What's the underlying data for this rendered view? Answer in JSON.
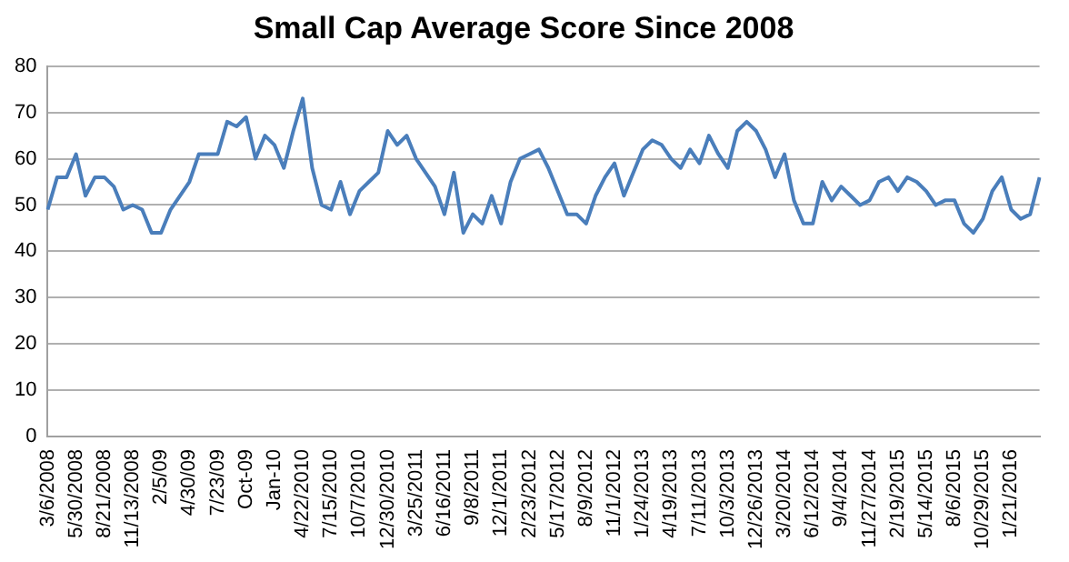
{
  "chart_data": {
    "type": "line",
    "title": "Small Cap Average Score Since 2008",
    "categories": [
      "3/6/2008",
      null,
      null,
      "5/30/2008",
      null,
      null,
      "8/21/2008",
      null,
      null,
      "11/13/2008",
      null,
      null,
      "2/5/09",
      null,
      null,
      "4/30/09",
      null,
      null,
      "7/23/09",
      null,
      null,
      "Oct-09",
      null,
      null,
      "Jan-10",
      null,
      null,
      "4/22/2010",
      null,
      null,
      "7/15/2010",
      null,
      null,
      "10/7/2010",
      null,
      null,
      "12/30/2010",
      null,
      null,
      "3/25/2011",
      null,
      null,
      "6/16/2011",
      null,
      null,
      "9/8/2011",
      null,
      null,
      "12/1/2011",
      null,
      null,
      "2/23/2012",
      null,
      null,
      "5/17/2012",
      null,
      null,
      "8/9/2012",
      null,
      null,
      "11/1/2012",
      null,
      null,
      "1/24/2013",
      null,
      null,
      "4/19/2013",
      null,
      null,
      "7/11/2013",
      null,
      null,
      "10/3/2013",
      null,
      null,
      "12/26/2013",
      null,
      null,
      "3/20/2014",
      null,
      null,
      "6/12/2014",
      null,
      null,
      "9/4/2014",
      null,
      null,
      "11/27/2014",
      null,
      null,
      "2/19/2015",
      null,
      null,
      "5/14/2015",
      null,
      null,
      "8/6/2015",
      null,
      null,
      "10/29/2015",
      null,
      null,
      "1/21/2016",
      null,
      null,
      null
    ],
    "series": [
      {
        "color": "#4a7ebb",
        "values": [
          49,
          56,
          56,
          61,
          52,
          56,
          56,
          54,
          49,
          50,
          49,
          44,
          44,
          49,
          52,
          55,
          61,
          61,
          61,
          68,
          67,
          69,
          60,
          65,
          63,
          58,
          66,
          73,
          58,
          50,
          49,
          55,
          48,
          53,
          55,
          57,
          66,
          63,
          65,
          60,
          57,
          54,
          48,
          57,
          44,
          48,
          46,
          52,
          46,
          55,
          60,
          61,
          62,
          58,
          53,
          48,
          48,
          46,
          52,
          56,
          59,
          52,
          57,
          62,
          64,
          63,
          60,
          58,
          62,
          59,
          65,
          61,
          58,
          66,
          68,
          66,
          62,
          56,
          61,
          51,
          46,
          46,
          55,
          51,
          54,
          52,
          50,
          51,
          55,
          56,
          53,
          56,
          55,
          53,
          50,
          51,
          51,
          46,
          44,
          47,
          53,
          56,
          49,
          47,
          48,
          56
        ]
      }
    ],
    "ylim": [
      0,
      80
    ],
    "yticks": [
      0,
      10,
      20,
      30,
      40,
      50,
      60,
      70,
      80
    ],
    "grid": "y",
    "legend": false,
    "marker": "none",
    "line_style": "solid"
  }
}
